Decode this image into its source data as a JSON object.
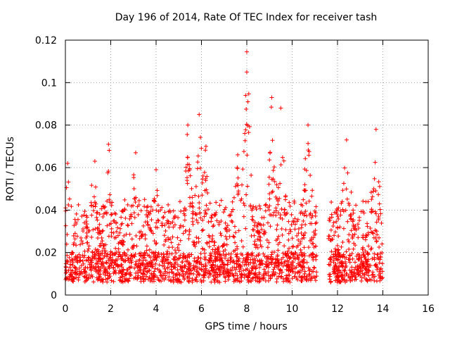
{
  "chart_data": {
    "type": "scatter",
    "title": "Day 196 of 2014, Rate Of TEC Index for receiver tash",
    "xlabel": "GPS time / hours",
    "ylabel": "ROTI / TECUs",
    "xlim": [
      0,
      16
    ],
    "ylim": [
      0,
      0.12
    ],
    "x_ticks": [
      "0",
      "2",
      "4",
      "6",
      "8",
      "10",
      "12",
      "14",
      "16"
    ],
    "y_ticks": [
      "0",
      "0.02",
      "0.04",
      "0.06",
      "0.08",
      "0.1",
      "0.12"
    ],
    "grid": true,
    "marker": "+",
    "color": "#ff0000",
    "data_gap": [
      11.1,
      11.6
    ],
    "series": [
      {
        "name": "ROTI",
        "peaks": [
          {
            "x": 0.1,
            "y": 0.062
          },
          {
            "x": 1.3,
            "y": 0.063
          },
          {
            "x": 1.9,
            "y": 0.071
          },
          {
            "x": 3.1,
            "y": 0.067
          },
          {
            "x": 4.0,
            "y": 0.059
          },
          {
            "x": 5.4,
            "y": 0.08
          },
          {
            "x": 5.9,
            "y": 0.085
          },
          {
            "x": 6.2,
            "y": 0.07
          },
          {
            "x": 7.6,
            "y": 0.066
          },
          {
            "x": 8.0,
            "y": 0.1145
          },
          {
            "x": 8.0,
            "y": 0.105
          },
          {
            "x": 8.05,
            "y": 0.091
          },
          {
            "x": 9.1,
            "y": 0.093
          },
          {
            "x": 9.5,
            "y": 0.088
          },
          {
            "x": 10.7,
            "y": 0.08
          },
          {
            "x": 12.4,
            "y": 0.073
          },
          {
            "x": 13.7,
            "y": 0.078
          }
        ]
      }
    ]
  }
}
